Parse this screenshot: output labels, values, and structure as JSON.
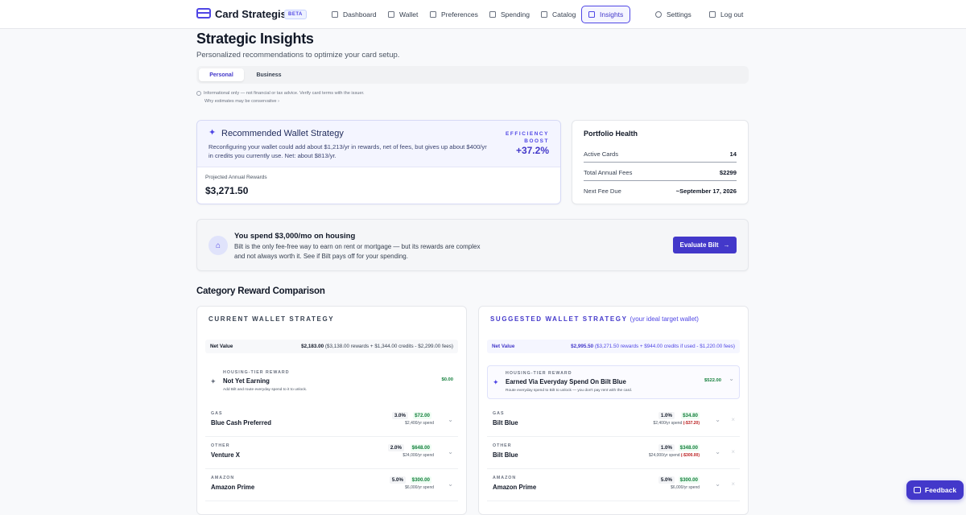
{
  "app": {
    "name": "Card Strategist",
    "badge": "BETA"
  },
  "nav": {
    "items": [
      "Dashboard",
      "Wallet",
      "Preferences",
      "Spending",
      "Catalog",
      "Insights"
    ],
    "settings": "Settings",
    "logout": "Log out",
    "active": "Insights"
  },
  "page": {
    "title": "Strategic Insights",
    "subtitle": "Personalized recommendations to optimize your card setup."
  },
  "tabs": [
    "Personal",
    "Business"
  ],
  "disclaimer": {
    "line1": "Informational only — not financial or tax advice. Verify card terms with the issuer.",
    "line2": "Why estimates may be conservative ›"
  },
  "wallet": {
    "title": "Recommended Wallet Strategy",
    "desc": "Reconfiguring your wallet could add about $1,213/yr in rewards, net of fees, but gives up about $400/yr in credits you currently use. Net: about $813/yr.",
    "efficiency_label": "EFFICIENCY BOOST",
    "efficiency_value": "+37.2%",
    "projected_label": "Projected Annual Rewards",
    "projected_value": "$3,271.50"
  },
  "health": {
    "title": "Portfolio Health",
    "rows": [
      {
        "label": "Active Cards",
        "value": "14"
      },
      {
        "label": "Total Annual Fees",
        "value": "$2299"
      },
      {
        "label": "Next Fee Due",
        "value": "~September 17, 2026"
      }
    ]
  },
  "bilt": {
    "title": "You spend $3,000/mo on housing",
    "desc": "Bilt is the only fee-free way to earn on rent or mortgage — but its rewards are complex and not always worth it. See if Bilt pays off for your spending.",
    "button": "Evaluate Bilt"
  },
  "comparison": {
    "title": "Category Reward Comparison",
    "current": {
      "header": "CURRENT WALLET STRATEGY",
      "net_label": "Net Value",
      "net_value": "$2,183.00",
      "net_detail": "($3,138.00 rewards + $1,344.00 credits - $2,299.00 fees)",
      "housing": {
        "cat": "HOUSING-TIER REWARD",
        "name": "Not Yet Earning",
        "desc": "Add Bilt and route everyday spend to it to unlock.",
        "amount": "$0.00"
      },
      "rows": [
        {
          "cat": "GAS",
          "card": "Blue Cash Preferred",
          "rate": "3.0%",
          "amount": "$72.00",
          "spend": "$2,400/yr spend"
        },
        {
          "cat": "OTHER",
          "card": "Venture X",
          "rate": "2.0%",
          "amount": "$648.00",
          "spend": "$24,000/yr spend"
        },
        {
          "cat": "AMAZON",
          "card": "Amazon Prime",
          "rate": "5.0%",
          "amount": "$300.00",
          "spend": "$6,000/yr spend"
        }
      ]
    },
    "suggested": {
      "header": "SUGGESTED WALLET STRATEGY",
      "header_note": "(your ideal target wallet)",
      "net_label": "Net Value",
      "net_value": "$2,995.50",
      "net_detail": "($3,271.50 rewards + $944.00 credits if used - $1,220.00 fees)",
      "housing": {
        "cat": "HOUSING-TIER REWARD",
        "name": "Earned Via Everyday Spend On Bilt Blue",
        "desc": "Route everyday spend to Bilt to unlock — you don't pay rent with the card.",
        "amount": "$522.00"
      },
      "rows": [
        {
          "cat": "GAS",
          "card": "Bilt Blue",
          "rate": "1.0%",
          "amount": "$34.80",
          "spend": "$2,400/yr spend",
          "delta": "(-$37.20)"
        },
        {
          "cat": "OTHER",
          "card": "Bilt Blue",
          "rate": "1.0%",
          "amount": "$348.00",
          "spend": "$24,000/yr spend",
          "delta": "(-$300.00)"
        },
        {
          "cat": "AMAZON",
          "card": "Amazon Prime",
          "rate": "5.0%",
          "amount": "$300.00",
          "spend": "$6,000/yr spend",
          "delta": ""
        }
      ]
    }
  },
  "feedback": "Feedback",
  "colors": {
    "accent": "#4338ca",
    "positive": "#15803d",
    "negative": "#b91c1c"
  }
}
